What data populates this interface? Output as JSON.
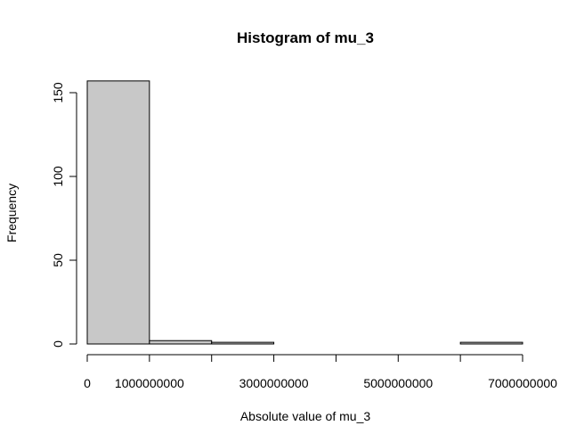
{
  "chart_data": {
    "type": "bar",
    "title": "Histogram of mu_3",
    "xlabel": "Absolute value of mu_3",
    "ylabel": "Frequency",
    "bins": [
      {
        "from": 0,
        "to": 1000000000,
        "count": 157
      },
      {
        "from": 1000000000,
        "to": 2000000000,
        "count": 2
      },
      {
        "from": 2000000000,
        "to": 3000000000,
        "count": 1
      },
      {
        "from": 3000000000,
        "to": 4000000000,
        "count": 0
      },
      {
        "from": 4000000000,
        "to": 5000000000,
        "count": 0
      },
      {
        "from": 5000000000,
        "to": 6000000000,
        "count": 0
      },
      {
        "from": 6000000000,
        "to": 7000000000,
        "count": 1
      }
    ],
    "xlim": [
      0,
      7000000000
    ],
    "ylim": [
      0,
      157
    ],
    "x_ticks": [
      0,
      1000000000,
      2000000000,
      3000000000,
      4000000000,
      5000000000,
      6000000000,
      7000000000
    ],
    "x_tick_labels": [
      "0",
      "1000000000",
      "",
      "3000000000",
      "",
      "5000000000",
      "",
      "7000000000"
    ],
    "y_ticks": [
      0,
      50,
      100,
      150
    ],
    "y_tick_labels": [
      "0",
      "50",
      "100",
      "150"
    ],
    "bar_fill": "#c8c8c8",
    "bar_stroke": "#000000",
    "grid": false
  }
}
